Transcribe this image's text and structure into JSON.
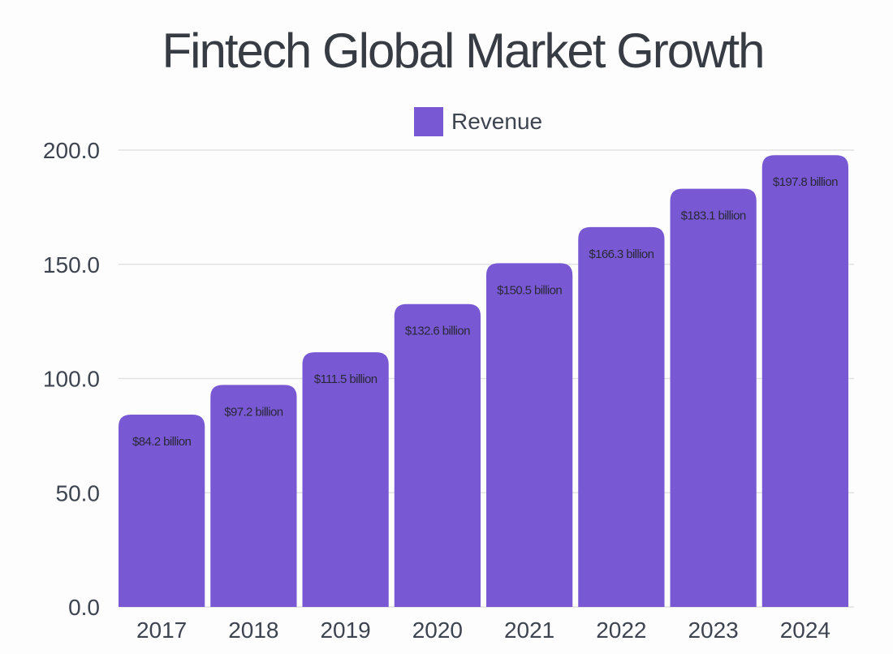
{
  "chart_data": {
    "type": "bar",
    "title": "Fintech Global Market Growth",
    "xlabel": "",
    "ylabel": "",
    "ylim": [
      0,
      200
    ],
    "yticks": [
      "0.0",
      "50.0",
      "100.0",
      "150.0",
      "200.0"
    ],
    "grid": true,
    "legend_placement": "top-center",
    "categories": [
      "2017",
      "2018",
      "2019",
      "2020",
      "2021",
      "2022",
      "2023",
      "2024"
    ],
    "series": [
      {
        "name": "Revenue",
        "color": "#7859d3",
        "values": [
          84.2,
          97.2,
          111.5,
          132.6,
          150.5,
          166.3,
          183.1,
          197.8
        ],
        "labels": [
          "$84.2 billion",
          "$97.2 billion",
          "$111.5 billion",
          "$132.6 billion",
          "$150.5 billion",
          "$166.3 billion",
          "$183.1 billion",
          "$197.8 billion"
        ]
      }
    ]
  }
}
